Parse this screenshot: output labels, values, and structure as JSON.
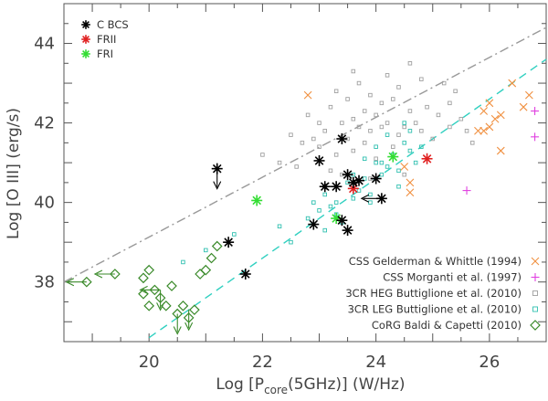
{
  "chart_data": {
    "type": "scatter",
    "xlabel_prefix": "Log [P",
    "xlabel_sub": "core",
    "xlabel_suffix": "(5GHz)] (W/Hz)",
    "ylabel": "Log [O III] (erg/s)",
    "xlim": [
      18.5,
      27.0
    ],
    "ylim": [
      36.5,
      45.0
    ],
    "xticks": [
      "20",
      "22",
      "24",
      "26"
    ],
    "yticks": [
      "38",
      "40",
      "42",
      "44"
    ],
    "top_legend": [
      {
        "name": "C BCS",
        "color": "#000000"
      },
      {
        "name": "FRII",
        "color": "#e02020"
      },
      {
        "name": "FRI",
        "color": "#33dd33"
      }
    ],
    "bottom_legend": [
      {
        "name": "CSS Gelderman & Whittle (1994)",
        "marker": "cross",
        "color": "#f09040"
      },
      {
        "name": "CSS Morganti et al. (1997)",
        "marker": "plus",
        "color": "#e040e0"
      },
      {
        "name": "3CR HEG Buttiglione et al. (2010)",
        "marker": "square",
        "color": "#a0a0a0"
      },
      {
        "name": "3CR LEG Buttiglione et al. (2010)",
        "marker": "square",
        "color": "#30c0b0"
      },
      {
        "name": "CoRG Baldi & Capetti (2010)",
        "marker": "diamond",
        "color": "#3a8a2a"
      }
    ],
    "lines": [
      {
        "name": "HEG fit",
        "style": "dashdot",
        "color": "#999999",
        "x": [
          18.5,
          27.0
        ],
        "y": [
          38.0,
          44.4
        ]
      },
      {
        "name": "LEG fit",
        "style": "dashed",
        "color": "#30d0c0",
        "x": [
          20.0,
          27.0
        ],
        "y": [
          36.6,
          43.6
        ]
      }
    ],
    "series": [
      {
        "name": "C BCS",
        "marker": "asterisk",
        "color": "#000000",
        "x": [
          21.2,
          21.4,
          21.7,
          23.0,
          23.1,
          22.9,
          23.4,
          23.3,
          23.5,
          23.6,
          23.5,
          23.7,
          23.4,
          24.0,
          24.1
        ],
        "y": [
          40.85,
          39.0,
          38.2,
          41.05,
          40.4,
          39.45,
          41.6,
          40.4,
          40.7,
          40.5,
          39.3,
          40.55,
          39.55,
          40.6,
          40.1
        ]
      },
      {
        "name": "FRII",
        "marker": "asterisk",
        "color": "#e02020",
        "x": [
          23.6,
          24.9
        ],
        "y": [
          40.35,
          41.1
        ]
      },
      {
        "name": "FRI",
        "marker": "asterisk",
        "color": "#33dd33",
        "x": [
          21.9,
          23.3,
          24.3
        ],
        "y": [
          40.05,
          39.6,
          41.15
        ]
      },
      {
        "name": "CSS Gelderman & Whittle (1994)",
        "marker": "cross",
        "color": "#f09040",
        "x": [
          22.8,
          24.5,
          24.6,
          24.6,
          25.8,
          25.9,
          25.9,
          26.0,
          26.1,
          26.2,
          26.4,
          26.6,
          26.7,
          26.0,
          26.2
        ],
        "y": [
          42.7,
          40.9,
          40.5,
          40.25,
          41.8,
          42.3,
          41.8,
          42.5,
          42.1,
          42.2,
          43.0,
          42.4,
          42.7,
          41.9,
          41.3
        ]
      },
      {
        "name": "CSS Morganti et al. (1997)",
        "marker": "plus",
        "color": "#e040e0",
        "x": [
          25.6,
          26.8,
          26.8
        ],
        "y": [
          40.3,
          42.3,
          41.65
        ]
      },
      {
        "name": "3CR HEG Buttiglione et al. (2010)",
        "marker": "square",
        "color": "#a0a0a0",
        "x": [
          22.0,
          22.3,
          22.5,
          22.7,
          22.8,
          23.0,
          23.0,
          23.1,
          23.2,
          23.3,
          23.3,
          23.4,
          23.5,
          23.5,
          23.6,
          23.6,
          23.7,
          23.7,
          23.8,
          23.8,
          23.9,
          23.9,
          24.0,
          24.0,
          24.1,
          24.1,
          24.2,
          24.2,
          24.3,
          24.3,
          24.4,
          24.4,
          24.5,
          24.6,
          24.6,
          24.7,
          24.8,
          24.9,
          25.0,
          25.1,
          25.2,
          25.3,
          25.3,
          25.5,
          25.6,
          25.7,
          23.2,
          23.9,
          24.5,
          22.9,
          23.6,
          24.8,
          25.4,
          22.6,
          23.4
        ],
        "y": [
          41.2,
          41.0,
          41.7,
          41.5,
          42.2,
          41.4,
          42.0,
          41.8,
          42.4,
          41.2,
          42.8,
          42.0,
          41.6,
          42.6,
          41.3,
          42.1,
          41.9,
          43.0,
          42.3,
          41.5,
          42.7,
          41.8,
          42.2,
          41.1,
          42.5,
          41.9,
          43.2,
          42.0,
          41.4,
          42.6,
          41.7,
          42.9,
          41.9,
          42.3,
          43.5,
          42.0,
          41.8,
          42.4,
          41.6,
          42.2,
          43.0,
          42.5,
          41.9,
          42.1,
          41.8,
          41.5,
          40.8,
          40.6,
          40.7,
          41.6,
          43.3,
          43.1,
          42.8,
          40.9,
          40.7
        ]
      },
      {
        "name": "3CR LEG Buttiglione et al. (2010)",
        "marker": "square",
        "color": "#30c0b0",
        "x": [
          20.6,
          21.0,
          21.5,
          22.3,
          22.5,
          22.8,
          23.0,
          23.1,
          23.2,
          23.3,
          23.4,
          23.5,
          23.6,
          23.7,
          23.8,
          23.9,
          24.0,
          24.1,
          24.2,
          24.3,
          24.4,
          24.5,
          24.6,
          24.7,
          24.8,
          23.3,
          23.6,
          23.9,
          24.2,
          24.5,
          22.9,
          23.1,
          23.8,
          24.0,
          24.4,
          24.6,
          24.1
        ],
        "y": [
          38.5,
          38.8,
          39.2,
          39.4,
          39.0,
          39.6,
          39.8,
          40.2,
          39.9,
          40.0,
          39.5,
          40.5,
          40.1,
          40.3,
          40.6,
          40.2,
          41.0,
          40.7,
          40.9,
          41.2,
          40.8,
          41.5,
          41.3,
          41.0,
          41.4,
          39.7,
          40.7,
          40.0,
          41.7,
          42.0,
          40.0,
          39.3,
          41.1,
          41.4,
          40.4,
          41.8,
          41.0
        ]
      },
      {
        "name": "CoRG Baldi & Capetti (2010)",
        "marker": "diamond",
        "color": "#3a8a2a",
        "x": [
          18.9,
          19.4,
          19.9,
          19.9,
          20.0,
          20.1,
          20.0,
          20.3,
          20.4,
          20.5,
          20.6,
          20.7,
          20.8,
          20.9,
          21.0,
          21.1,
          21.2,
          20.2
        ],
        "y": [
          38.0,
          38.2,
          38.1,
          37.7,
          37.4,
          37.8,
          38.3,
          37.4,
          37.9,
          37.2,
          37.4,
          37.1,
          37.3,
          38.2,
          38.3,
          38.6,
          38.9,
          37.6
        ]
      }
    ],
    "upper_limits": [
      {
        "x": 21.2,
        "y": 40.85,
        "color": "#000000"
      },
      {
        "x": 20.2,
        "y": 37.8,
        "color": "#3a8a2a"
      },
      {
        "x": 20.5,
        "y": 37.2,
        "color": "#3a8a2a"
      },
      {
        "x": 20.7,
        "y": 37.3,
        "color": "#3a8a2a"
      }
    ],
    "left_limits": [
      {
        "x": 23.4,
        "y": 40.4,
        "color": "#000000"
      },
      {
        "x": 24.1,
        "y": 40.1,
        "color": "#000000"
      },
      {
        "x": 18.9,
        "y": 38.0,
        "color": "#3a8a2a"
      },
      {
        "x": 19.4,
        "y": 38.2,
        "color": "#3a8a2a"
      },
      {
        "x": 20.2,
        "y": 37.8,
        "color": "#3a8a2a"
      }
    ]
  }
}
